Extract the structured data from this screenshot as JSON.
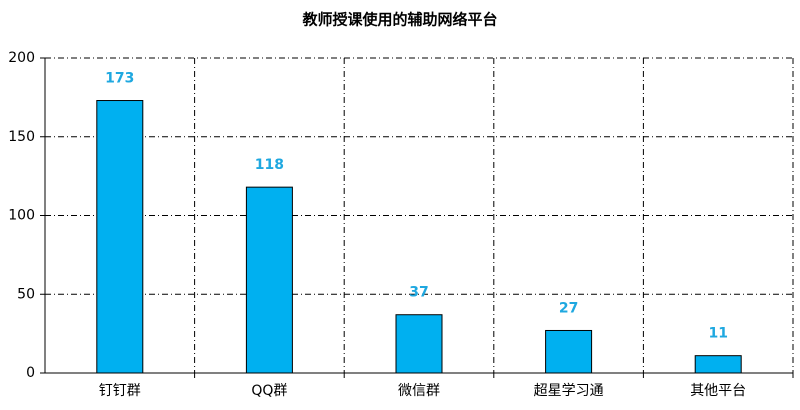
{
  "chart_data": {
    "type": "bar",
    "title": "教师授课使用的辅助网络平台",
    "categories": [
      "钉钉群",
      "QQ群",
      "微信群",
      "超星学习通",
      "其他平台"
    ],
    "values": [
      173,
      118,
      37,
      27,
      11
    ],
    "color": "#00b0f0",
    "ylim": [
      0,
      200
    ],
    "yticks": [
      0,
      50,
      100,
      150,
      200
    ],
    "grid": true
  }
}
